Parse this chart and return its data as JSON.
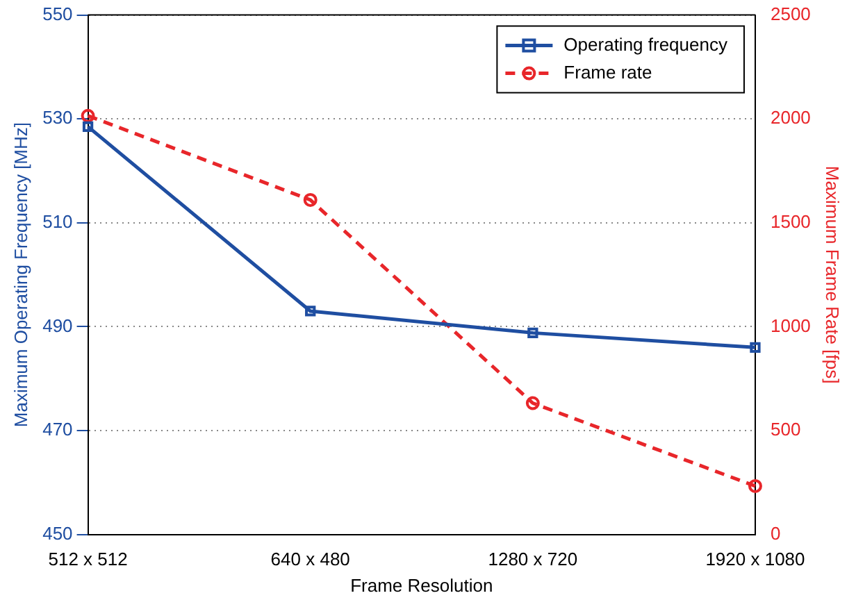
{
  "chart_data": {
    "type": "line",
    "xlabel": "Frame Resolution",
    "ylabel": "Maximum Operating Frequency [MHz]",
    "y2label": "Maximum Frame Rate [fps]",
    "categories": [
      "512 x 512",
      "640 x 480",
      "1280 x 720",
      "1920 x 1080"
    ],
    "series": [
      {
        "name": "Operating frequency",
        "color": "#1f4ea1",
        "values": [
          528.5,
          493,
          488.8,
          486
        ],
        "marker": "square",
        "line_style": "solid"
      },
      {
        "name": "Frame rate",
        "color": "#e8262a",
        "values": [
          2015,
          1610,
          632,
          233
        ],
        "marker": "circle",
        "line_style": "dashed",
        "axis": "y2"
      }
    ],
    "ylim": [
      450,
      550
    ],
    "yticks": [
      450,
      470,
      490,
      510,
      530,
      550
    ],
    "y2lim": [
      0,
      2500
    ],
    "y2ticks": [
      0,
      500,
      1000,
      1500,
      2000,
      2500
    ],
    "grid": "y",
    "legend": "top right"
  }
}
